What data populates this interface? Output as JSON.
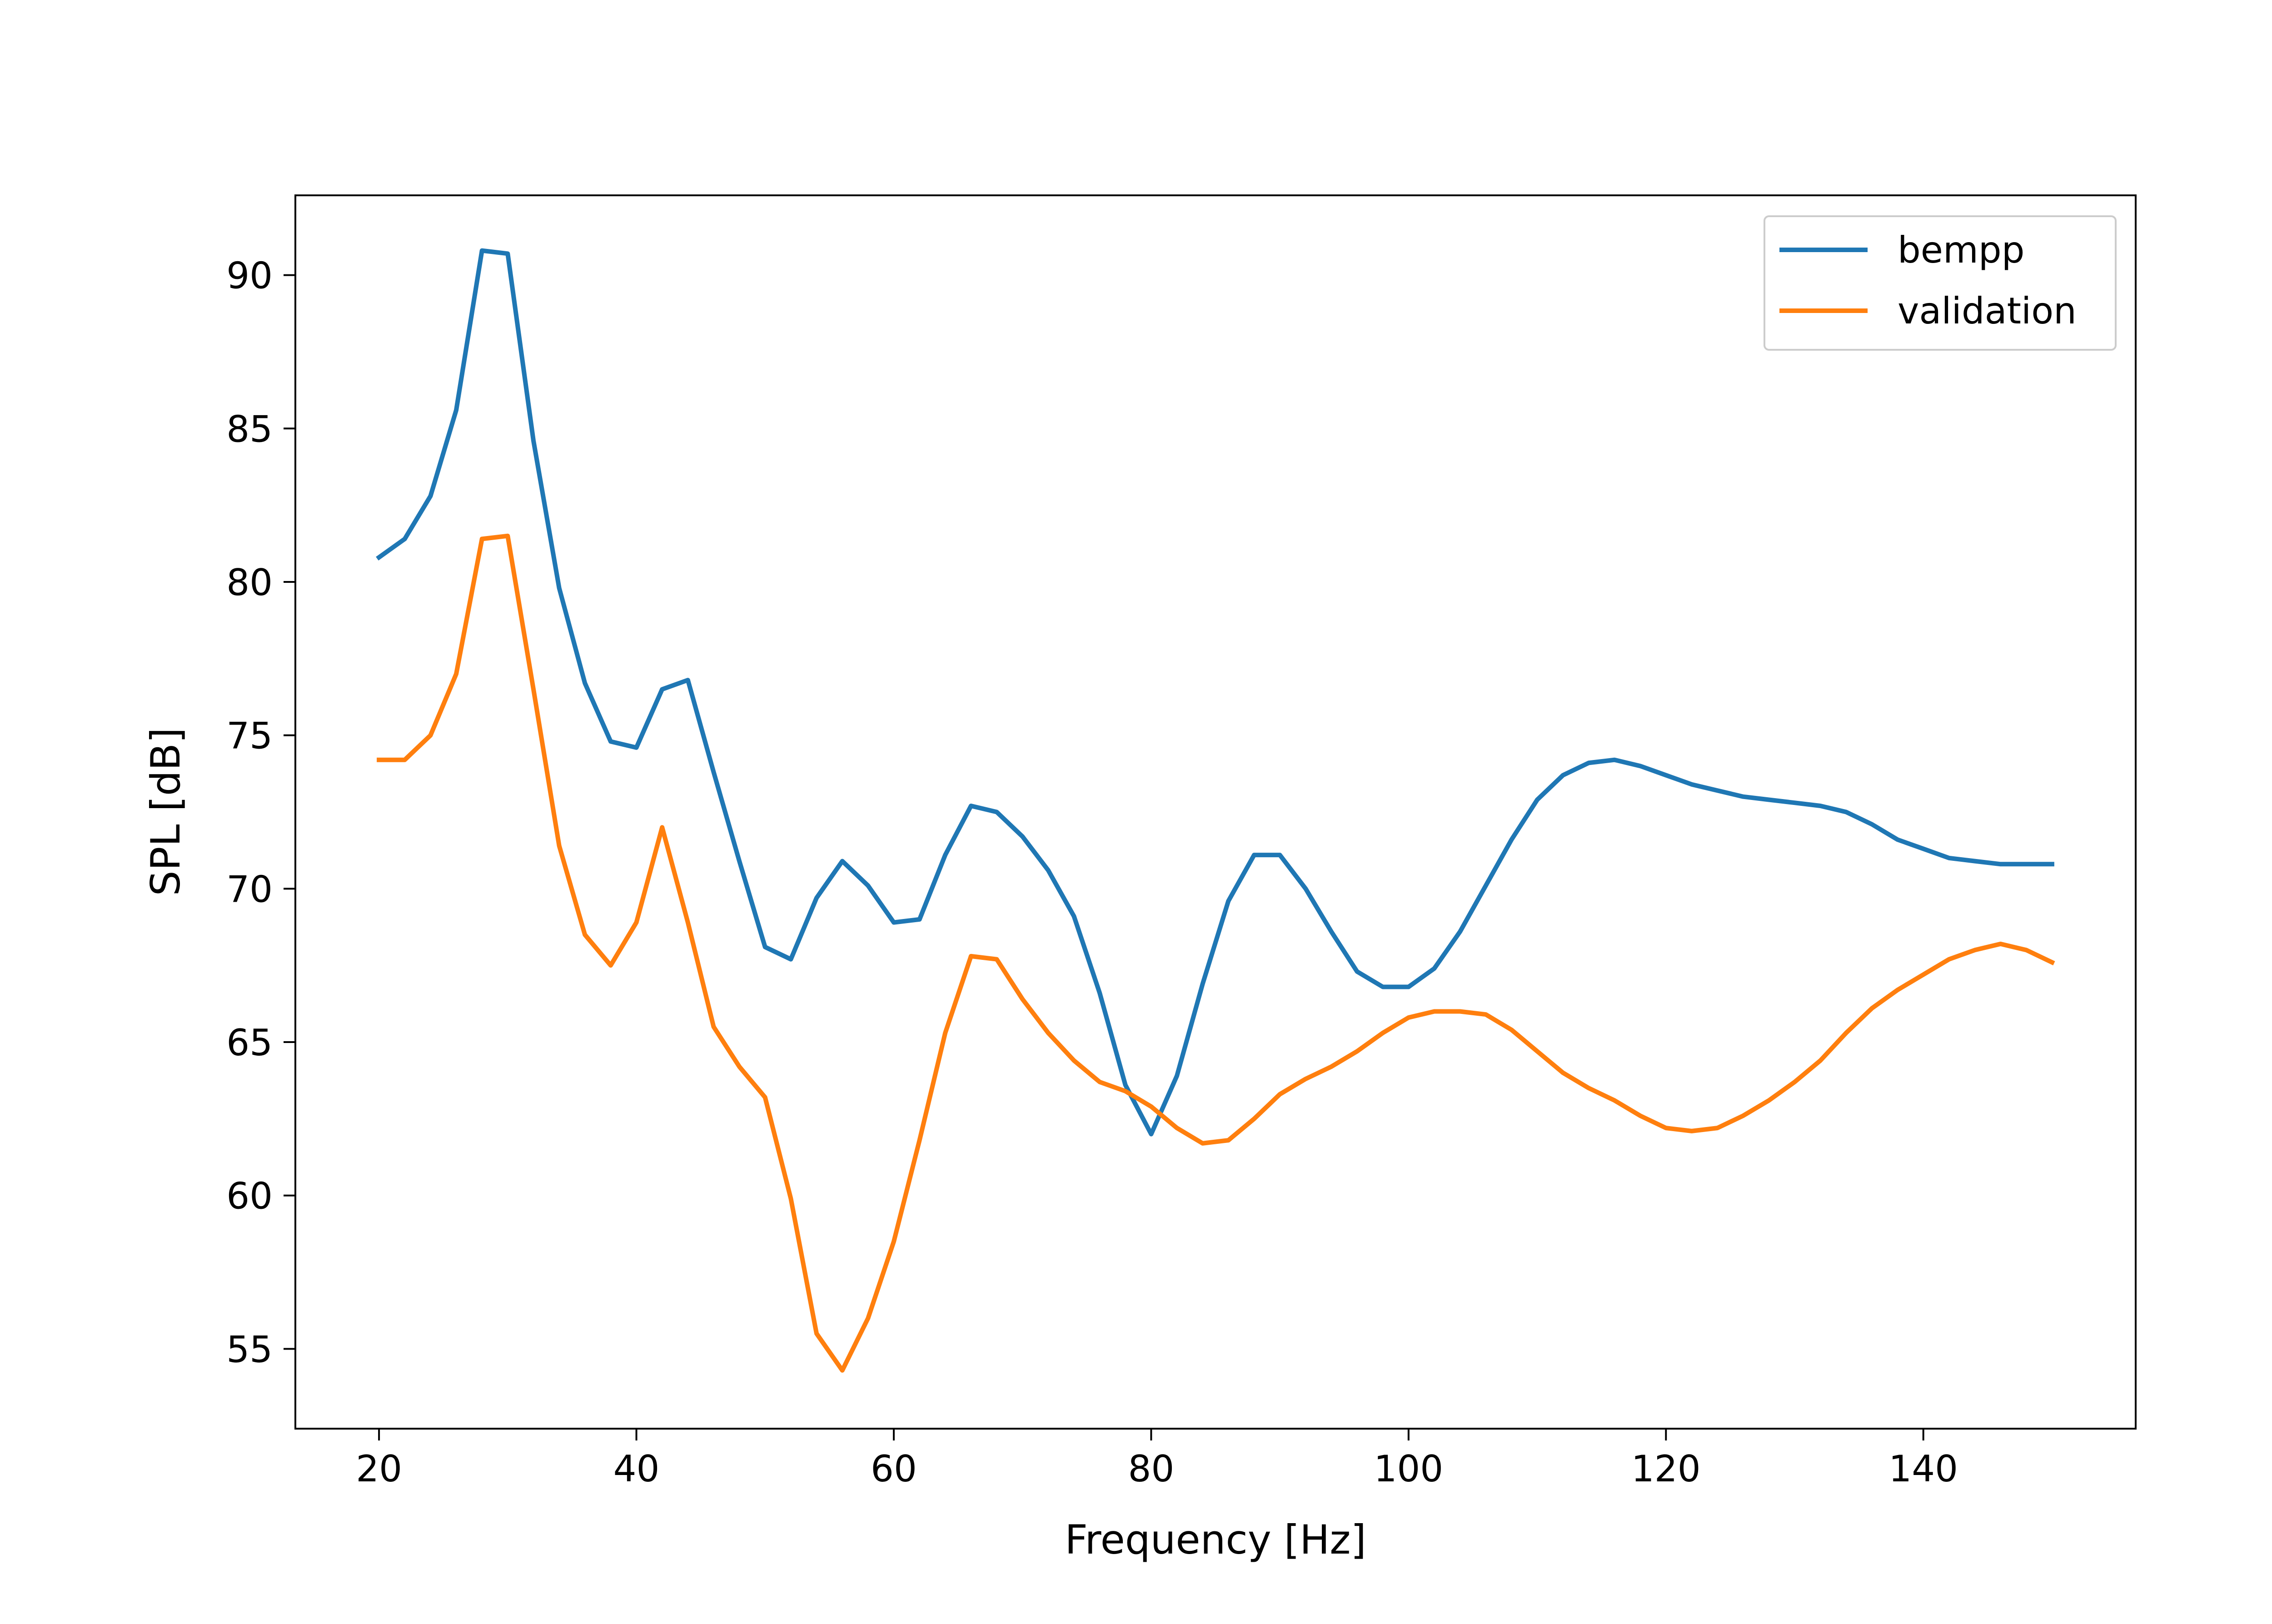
{
  "chart_data": {
    "type": "line",
    "title": "",
    "xlabel": "Frequency [Hz]",
    "ylabel": "SPL [dB]",
    "xlim": [
      13.5,
      156.5
    ],
    "ylim": [
      52.4,
      92.6
    ],
    "xticks": [
      20,
      40,
      60,
      80,
      100,
      120,
      140
    ],
    "yticks": [
      55,
      60,
      65,
      70,
      75,
      80,
      85,
      90
    ],
    "grid": false,
    "legend_position": "top-right",
    "x": [
      20,
      22,
      24,
      26,
      28,
      30,
      32,
      34,
      36,
      38,
      40,
      42,
      44,
      46,
      48,
      50,
      52,
      54,
      56,
      58,
      60,
      62,
      64,
      66,
      68,
      70,
      72,
      74,
      76,
      78,
      80,
      82,
      84,
      86,
      88,
      90,
      92,
      94,
      96,
      98,
      100,
      102,
      104,
      106,
      108,
      110,
      112,
      114,
      116,
      118,
      120,
      122,
      124,
      126,
      128,
      130,
      132,
      134,
      136,
      138,
      140,
      142,
      144,
      146,
      148,
      150
    ],
    "series": [
      {
        "name": "bempp",
        "color": "#1f77b4",
        "values": [
          80.8,
          81.4,
          82.8,
          85.6,
          90.8,
          90.7,
          84.6,
          79.8,
          76.7,
          74.8,
          74.6,
          76.5,
          76.8,
          73.8,
          70.9,
          68.1,
          67.7,
          69.7,
          70.9,
          70.1,
          68.9,
          69.0,
          71.1,
          72.7,
          72.5,
          71.7,
          70.6,
          69.1,
          66.6,
          63.6,
          62.0,
          63.9,
          66.9,
          69.6,
          71.1,
          71.1,
          70.0,
          68.6,
          67.3,
          66.8,
          66.8,
          67.4,
          68.6,
          70.1,
          71.6,
          72.9,
          73.7,
          74.1,
          74.2,
          74.0,
          73.7,
          73.4,
          73.2,
          73.0,
          72.9,
          72.8,
          72.7,
          72.5,
          72.1,
          71.6,
          71.3,
          71.0,
          70.9,
          70.8,
          70.8,
          70.8
        ]
      },
      {
        "name": "validation",
        "color": "#ff7f0e",
        "values": [
          74.2,
          74.2,
          75.0,
          77.0,
          81.4,
          81.5,
          76.5,
          71.4,
          68.5,
          67.5,
          68.9,
          72.0,
          68.9,
          65.5,
          64.2,
          63.2,
          59.9,
          55.5,
          54.3,
          56.0,
          58.5,
          61.8,
          65.3,
          67.8,
          67.7,
          66.4,
          65.3,
          64.4,
          63.7,
          63.4,
          62.9,
          62.2,
          61.7,
          61.8,
          62.5,
          63.3,
          63.8,
          64.2,
          64.7,
          65.3,
          65.8,
          66.0,
          66.0,
          65.9,
          65.4,
          64.7,
          64.0,
          63.5,
          63.1,
          62.6,
          62.2,
          62.1,
          62.2,
          62.6,
          63.1,
          63.7,
          64.4,
          65.3,
          66.1,
          66.7,
          67.2,
          67.7,
          68.0,
          68.2,
          68.0,
          67.6
        ]
      }
    ]
  }
}
